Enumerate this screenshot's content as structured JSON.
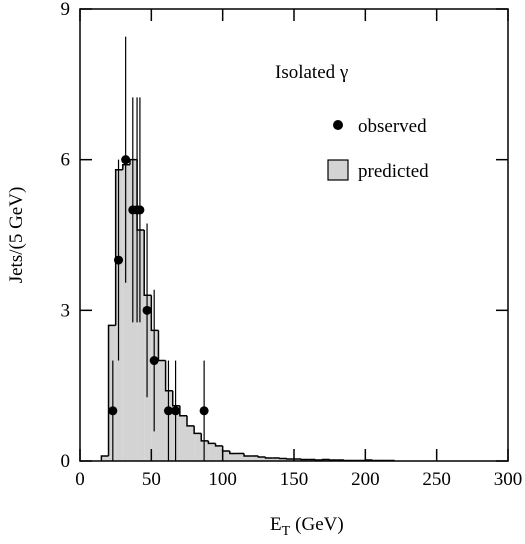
{
  "chart_data": {
    "type": "histogram",
    "x_label": {
      "main": "E",
      "sub": "T",
      "unit": "(GeV)"
    },
    "y_label": "Jets/(5 GeV)",
    "legend_title": "Isolated γ",
    "xlim": [
      0,
      300
    ],
    "xticks": [
      0,
      50,
      100,
      150,
      200,
      250,
      300
    ],
    "ylim": [
      0,
      9
    ],
    "yticks": [
      0,
      3,
      6,
      9
    ],
    "series": [
      {
        "name": "predicted",
        "color": "#d3d3d3",
        "bins": [
          15,
          20,
          25,
          30,
          35,
          40,
          45,
          50,
          55,
          60,
          65,
          70,
          75,
          80,
          85,
          90,
          95,
          100,
          105,
          110,
          115,
          120,
          125,
          130,
          135,
          140,
          145,
          150,
          155,
          160,
          165,
          170,
          175,
          180,
          185,
          190,
          195,
          200,
          205,
          210,
          215,
          220
        ],
        "values": [
          0.1,
          2.7,
          5.8,
          5.9,
          6.0,
          4.6,
          3.3,
          2.6,
          2.0,
          1.4,
          1.1,
          0.9,
          0.7,
          0.55,
          0.4,
          0.35,
          0.3,
          0.2,
          0.15,
          0.15,
          0.1,
          0.1,
          0.08,
          0.06,
          0.06,
          0.05,
          0.04,
          0.04,
          0.03,
          0.03,
          0.02,
          0.03,
          0.02,
          0.02,
          0.01,
          0.01,
          0.01,
          0.02,
          0.01,
          0.01,
          0.01
        ]
      },
      {
        "name": "observed",
        "color": "#000000",
        "x": [
          23,
          27,
          32,
          37,
          40,
          42,
          47,
          52,
          62,
          67,
          87
        ],
        "values": [
          1,
          4,
          6,
          5,
          5,
          5,
          3,
          2,
          1,
          1,
          1
        ],
        "errors": [
          1,
          2,
          2.45,
          2.24,
          2.24,
          2.24,
          1.73,
          1.41,
          1,
          1,
          1
        ]
      }
    ]
  }
}
